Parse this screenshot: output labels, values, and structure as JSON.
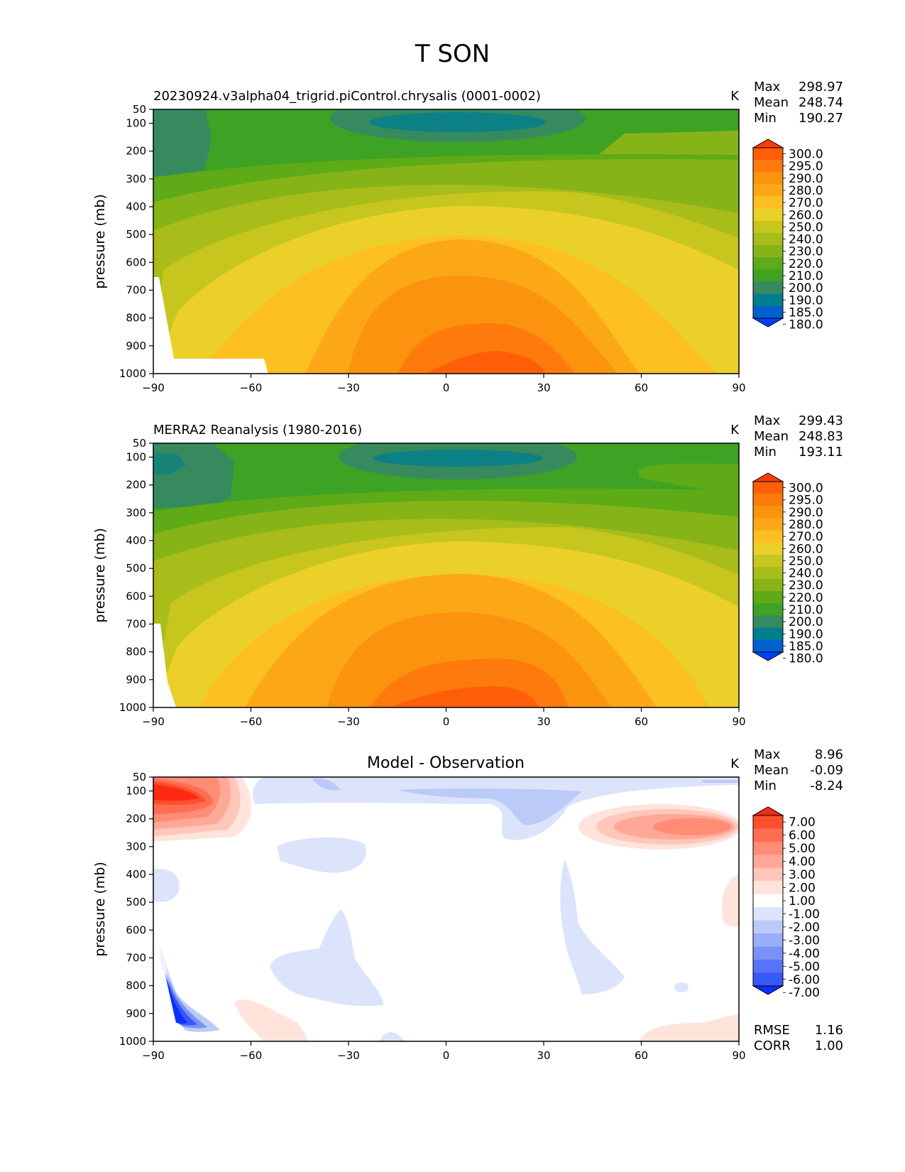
{
  "title": "T SON",
  "chart_data": [
    {
      "type": "heatmap",
      "subtitle": "20230924.v3alpha04_trigrid.piControl.chrysalis (0001-0002)",
      "units": "K",
      "stats": [
        {
          "label": "Max",
          "value": "298.97"
        },
        {
          "label": "Mean",
          "value": "248.74"
        },
        {
          "label": "Min",
          "value": "190.27"
        }
      ],
      "xlabel": "",
      "ylabel": "pressure (mb)",
      "x_ticks": [
        "−90",
        "−60",
        "−30",
        "0",
        "30",
        "60",
        "90"
      ],
      "y_ticks": [
        "50",
        "100",
        "200",
        "300",
        "400",
        "500",
        "600",
        "700",
        "800",
        "900",
        "1000"
      ],
      "xlim": [
        -90,
        90
      ],
      "ylim": [
        1000,
        50
      ],
      "colorbar_levels": [
        "300.0",
        "295.0",
        "290.0",
        "280.0",
        "270.0",
        "260.0",
        "250.0",
        "240.0",
        "230.0",
        "220.0",
        "210.0",
        "200.0",
        "190.0",
        "185.0",
        "180.0"
      ],
      "colors": [
        "#ff3a0a",
        "#ff5e08",
        "#ff7a0c",
        "#fb930e",
        "#fca716",
        "#fcc020",
        "#ecd02a",
        "#c7c61e",
        "#a8bc1a",
        "#86b418",
        "#5eab17",
        "#3ea224",
        "#378a5e",
        "#007e8e",
        "#0060d0",
        "#0040ff"
      ],
      "domain": {
        "lat": [
          -90,
          -60,
          -30,
          0,
          15,
          30,
          60,
          90
        ],
        "p": [
          100,
          200,
          300,
          400,
          500,
          600,
          700,
          800,
          900,
          1000
        ]
      }
    },
    {
      "type": "heatmap",
      "subtitle": "MERRA2 Reanalysis (1980-2016)",
      "units": "K",
      "stats": [
        {
          "label": "Max",
          "value": "299.43"
        },
        {
          "label": "Mean",
          "value": "248.83"
        },
        {
          "label": "Min",
          "value": "193.11"
        }
      ],
      "xlabel": "",
      "ylabel": "pressure (mb)",
      "x_ticks": [
        "−90",
        "−60",
        "−30",
        "0",
        "30",
        "60",
        "90"
      ],
      "y_ticks": [
        "50",
        "100",
        "200",
        "300",
        "400",
        "500",
        "600",
        "700",
        "800",
        "900",
        "1000"
      ],
      "xlim": [
        -90,
        90
      ],
      "ylim": [
        1000,
        50
      ],
      "colorbar_levels": [
        "300.0",
        "295.0",
        "290.0",
        "280.0",
        "270.0",
        "260.0",
        "250.0",
        "240.0",
        "230.0",
        "220.0",
        "210.0",
        "200.0",
        "190.0",
        "185.0",
        "180.0"
      ],
      "colors": [
        "#ff3a0a",
        "#ff5e08",
        "#ff7a0c",
        "#fb930e",
        "#fca716",
        "#fcc020",
        "#ecd02a",
        "#c7c61e",
        "#a8bc1a",
        "#86b418",
        "#5eab17",
        "#3ea224",
        "#378a5e",
        "#007e8e",
        "#0060d0",
        "#0040ff"
      ]
    },
    {
      "type": "heatmap",
      "subtitle": "Model - Observation",
      "units": "K",
      "stats": [
        {
          "label": "Max",
          "value": "8.96"
        },
        {
          "label": "Mean",
          "value": "-0.09"
        },
        {
          "label": "Min",
          "value": "-8.24"
        }
      ],
      "extra_stats": [
        {
          "label": "RMSE",
          "value": "1.16"
        },
        {
          "label": "CORR",
          "value": "1.00"
        }
      ],
      "xlabel": "",
      "ylabel": "pressure (mb)",
      "x_ticks": [
        "−90",
        "−60",
        "−30",
        "0",
        "30",
        "60",
        "90"
      ],
      "y_ticks": [
        "50",
        "100",
        "200",
        "300",
        "400",
        "500",
        "600",
        "700",
        "800",
        "900",
        "1000"
      ],
      "xlim": [
        -90,
        90
      ],
      "ylim": [
        1000,
        50
      ],
      "colorbar_levels": [
        "7.00",
        "6.00",
        "5.00",
        "4.00",
        "3.00",
        "2.00",
        "1.00",
        "-1.00",
        "-2.00",
        "-3.00",
        "-4.00",
        "-5.00",
        "-6.00",
        "-7.00"
      ],
      "colors": [
        "#ff2a10",
        "#ff4e2e",
        "#ff6e52",
        "#ff8c74",
        "#ffa898",
        "#ffc6ba",
        "#ffe4dc",
        "#ffffff",
        "#dce4fc",
        "#bccaf8",
        "#9aaef6",
        "#7a92f6",
        "#5874f8",
        "#3858fa",
        "#0a30ff"
      ]
    }
  ]
}
